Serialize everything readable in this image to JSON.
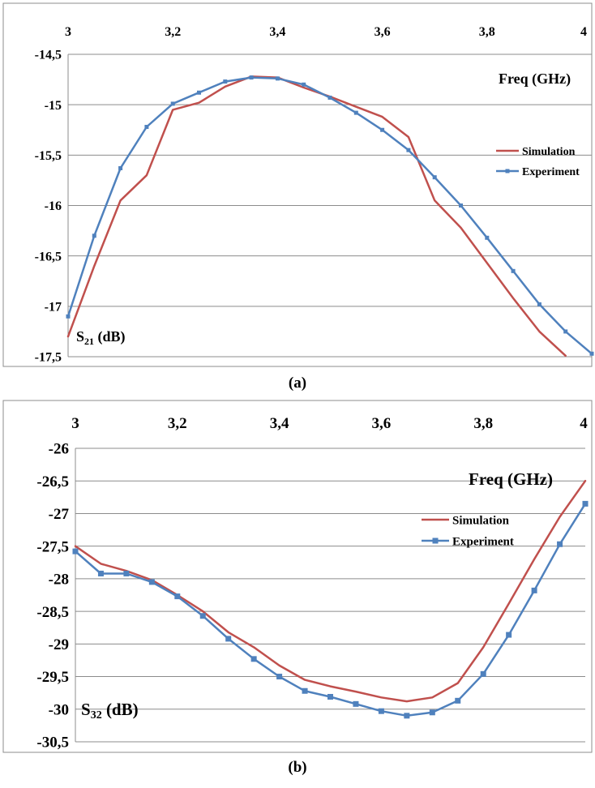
{
  "chart_data": [
    {
      "panel": "(a)",
      "type": "line",
      "xlabel": "Freq (GHz)",
      "ylabel_main": "S",
      "ylabel_sub": "21",
      "ylabel_unit": " (dB)",
      "xlim": [
        3,
        4
      ],
      "ylim": [
        -17.5,
        -14.5
      ],
      "xticks": [
        "3",
        "3,2",
        "3,4",
        "3,6",
        "3,8",
        "4"
      ],
      "xtick_values": [
        3,
        3.2,
        3.4,
        3.6,
        3.8,
        4
      ],
      "yticks": [
        "-14,5",
        "-15",
        "-15,5",
        "-16",
        "-16,5",
        "-17",
        "-17,5"
      ],
      "ytick_values": [
        -14.5,
        -15,
        -15.5,
        -16,
        -16.5,
        -17,
        -17.5
      ],
      "x_axis_position": "top",
      "grid": true,
      "legend_position": "right",
      "series": [
        {
          "name": "Simulation",
          "color": "#c0504d",
          "marker": "none",
          "x": [
            3.0,
            3.05,
            3.1,
            3.15,
            3.2,
            3.25,
            3.3,
            3.35,
            3.4,
            3.45,
            3.5,
            3.55,
            3.6,
            3.65,
            3.7,
            3.75,
            3.8,
            3.85,
            3.9,
            3.95
          ],
          "y": [
            -17.3,
            -16.6,
            -15.95,
            -15.7,
            -15.05,
            -14.98,
            -14.82,
            -14.72,
            -14.73,
            -14.83,
            -14.92,
            -15.02,
            -15.12,
            -15.32,
            -15.95,
            -16.22,
            -16.57,
            -16.92,
            -17.25,
            -17.49
          ]
        },
        {
          "name": "Experiment",
          "color": "#4f81bd",
          "marker": "square",
          "x": [
            3.0,
            3.05,
            3.1,
            3.15,
            3.2,
            3.25,
            3.3,
            3.35,
            3.4,
            3.45,
            3.5,
            3.55,
            3.6,
            3.65,
            3.7,
            3.75,
            3.8,
            3.85,
            3.9,
            3.95,
            4.0
          ],
          "y": [
            -17.1,
            -16.3,
            -15.63,
            -15.22,
            -14.99,
            -14.88,
            -14.77,
            -14.73,
            -14.74,
            -14.8,
            -14.93,
            -15.08,
            -15.25,
            -15.45,
            -15.72,
            -16.0,
            -16.32,
            -16.65,
            -16.98,
            -17.25,
            -17.47
          ]
        }
      ]
    },
    {
      "panel": "(b)",
      "type": "line",
      "xlabel": "Freq (GHz)",
      "ylabel_main": "S",
      "ylabel_sub": "32",
      "ylabel_unit": " (dB)",
      "xlim": [
        3,
        4
      ],
      "ylim": [
        -30.5,
        -26
      ],
      "xticks": [
        "3",
        "3,2",
        "3,4",
        "3,6",
        "3,8",
        "4"
      ],
      "xtick_values": [
        3,
        3.2,
        3.4,
        3.6,
        3.8,
        4
      ],
      "yticks": [
        "-26",
        "-26,5",
        "-27",
        "-27,5",
        "-28",
        "-28,5",
        "-29",
        "-29,5",
        "-30",
        "-30,5"
      ],
      "ytick_values": [
        -26,
        -26.5,
        -27,
        -27.5,
        -28,
        -28.5,
        -29,
        -29.5,
        -30,
        -30.5
      ],
      "x_axis_position": "top",
      "grid": true,
      "legend_position": "right",
      "series": [
        {
          "name": "Simulation",
          "color": "#c0504d",
          "marker": "none",
          "x": [
            3.0,
            3.05,
            3.1,
            3.15,
            3.2,
            3.25,
            3.3,
            3.35,
            3.4,
            3.45,
            3.5,
            3.55,
            3.6,
            3.65,
            3.7,
            3.75,
            3.8,
            3.85,
            3.9,
            3.95,
            4.0
          ],
          "y": [
            -27.5,
            -27.77,
            -27.88,
            -28.02,
            -28.25,
            -28.5,
            -28.82,
            -29.05,
            -29.33,
            -29.55,
            -29.65,
            -29.73,
            -29.82,
            -29.88,
            -29.82,
            -29.6,
            -29.05,
            -28.38,
            -27.7,
            -27.05,
            -26.5
          ]
        },
        {
          "name": "Experiment",
          "color": "#4f81bd",
          "marker": "square",
          "x": [
            3.0,
            3.05,
            3.1,
            3.15,
            3.2,
            3.25,
            3.3,
            3.35,
            3.4,
            3.45,
            3.5,
            3.55,
            3.6,
            3.65,
            3.7,
            3.75,
            3.8,
            3.85,
            3.9,
            3.95,
            4.0
          ],
          "y": [
            -27.58,
            -27.92,
            -27.92,
            -28.05,
            -28.27,
            -28.57,
            -28.92,
            -29.23,
            -29.5,
            -29.72,
            -29.81,
            -29.92,
            -30.03,
            -30.1,
            -30.05,
            -29.87,
            -29.46,
            -28.86,
            -28.18,
            -27.47,
            -26.85
          ]
        }
      ]
    }
  ],
  "captions": {
    "a": "(a)",
    "b": "(b)"
  }
}
